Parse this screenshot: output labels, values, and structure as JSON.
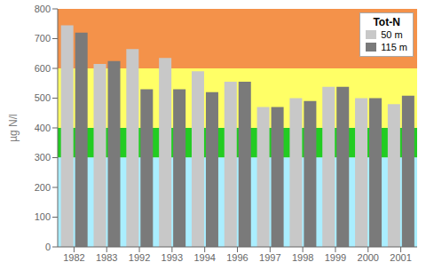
{
  "chart_data": {
    "type": "bar",
    "categories": [
      "1982",
      "1983",
      "1992",
      "1993",
      "1994",
      "1996",
      "1997",
      "1998",
      "1999",
      "2000",
      "2001"
    ],
    "series": [
      {
        "name": "50 m",
        "color": "#c8c8c8",
        "values": [
          745,
          615,
          665,
          635,
          590,
          555,
          470,
          500,
          538,
          500,
          480
        ]
      },
      {
        "name": "115 m",
        "color": "#7a7a7a",
        "values": [
          720,
          625,
          530,
          530,
          520,
          555,
          470,
          490,
          538,
          500,
          508
        ]
      }
    ],
    "ylabel": "µg N/l",
    "legend_title": "Tot-N",
    "legend": "upper right",
    "bands": [
      {
        "from": 600,
        "to": 800,
        "color": "#f4924a"
      },
      {
        "from": 400,
        "to": 600,
        "color": "#ffff66"
      },
      {
        "from": 300,
        "to": 400,
        "color": "#22cc22"
      },
      {
        "from": 0,
        "to": 300,
        "color": "#aaeeff"
      }
    ],
    "ylim": [
      0,
      800
    ],
    "yticks": [
      0,
      100,
      200,
      300,
      400,
      500,
      600,
      700,
      800
    ],
    "grid": false
  }
}
